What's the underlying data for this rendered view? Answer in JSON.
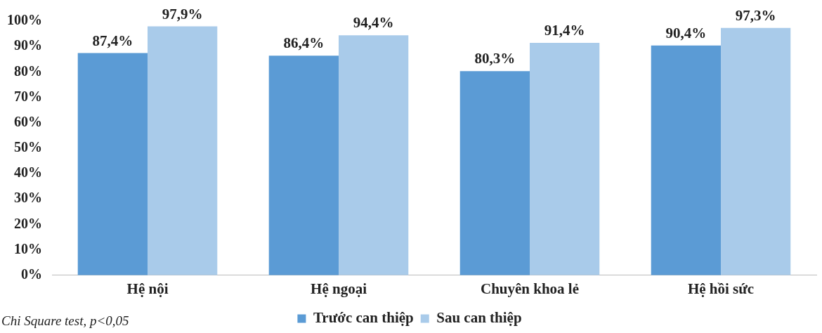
{
  "chart_data": {
    "type": "bar",
    "categories": [
      "Hệ nội",
      "Hệ ngoại",
      "Chuyên khoa lẻ",
      "Hệ hồi sức"
    ],
    "series": [
      {
        "name": "Trước can thiệp",
        "color": "#5b9bd5",
        "values": [
          87.4,
          86.4,
          80.3,
          90.4
        ],
        "value_labels": [
          "87,4%",
          "86,4%",
          "80,3%",
          "90,4%"
        ]
      },
      {
        "name": "Sau can thiệp",
        "color": "#a9cbea",
        "values": [
          97.9,
          94.4,
          91.4,
          97.3
        ],
        "value_labels": [
          "97,9%",
          "94,4%",
          "91,4%",
          "97,3%"
        ]
      }
    ],
    "ylim": [
      0,
      100
    ],
    "yticks": [
      {
        "value": 0,
        "label": "0%"
      },
      {
        "value": 10,
        "label": "10%"
      },
      {
        "value": 20,
        "label": "20%"
      },
      {
        "value": 30,
        "label": "30%"
      },
      {
        "value": 40,
        "label": "40%"
      },
      {
        "value": 50,
        "label": "50%"
      },
      {
        "value": 60,
        "label": "60%"
      },
      {
        "value": 70,
        "label": "70%"
      },
      {
        "value": 80,
        "label": "80%"
      },
      {
        "value": 90,
        "label": "90%"
      },
      {
        "value": 100,
        "label": "100%"
      }
    ],
    "grid": false,
    "legend": "bottom",
    "annotations": [
      "Chi Square test, p<0,05"
    ]
  }
}
